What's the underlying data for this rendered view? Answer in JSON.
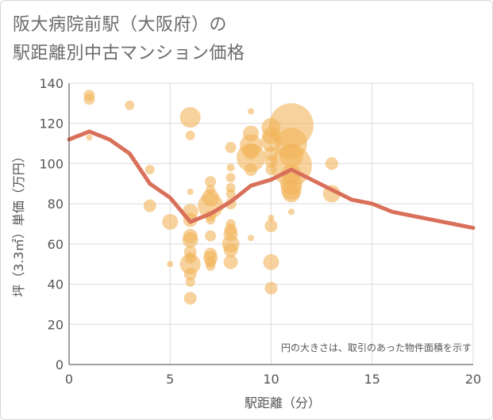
{
  "title_line1": "阪大病院前駅（大阪府）の",
  "title_line2": "駅距離別中古マンション価格",
  "note": "円の大きさは、取引のあった物件面積を示す",
  "colors": {
    "bubble": "#f2b45a",
    "line": "#d9705a",
    "grid": "#dcdcdc"
  },
  "chart_data": {
    "type": "scatter",
    "xlabel": "駅距離（分）",
    "ylabel": "坪（3.3㎡）単価（万円）",
    "xlim": [
      0,
      20
    ],
    "ylim": [
      0,
      140
    ],
    "x_ticks": [
      "0",
      "5",
      "10",
      "15",
      "20"
    ],
    "y_ticks": [
      "0",
      "20",
      "40",
      "60",
      "80",
      "100",
      "120",
      "140"
    ],
    "bubbles": [
      {
        "x": 1,
        "y": 134,
        "s": 7
      },
      {
        "x": 1,
        "y": 132,
        "s": 7
      },
      {
        "x": 1,
        "y": 113,
        "s": 4
      },
      {
        "x": 3,
        "y": 129,
        "s": 6
      },
      {
        "x": 4,
        "y": 97,
        "s": 6
      },
      {
        "x": 4,
        "y": 79,
        "s": 8
      },
      {
        "x": 5,
        "y": 71,
        "s": 10
      },
      {
        "x": 5,
        "y": 50,
        "s": 4
      },
      {
        "x": 6,
        "y": 123,
        "s": 13
      },
      {
        "x": 6,
        "y": 114,
        "s": 6
      },
      {
        "x": 6,
        "y": 86,
        "s": 4
      },
      {
        "x": 6,
        "y": 76,
        "s": 10
      },
      {
        "x": 6,
        "y": 72,
        "s": 9
      },
      {
        "x": 6,
        "y": 64,
        "s": 9
      },
      {
        "x": 6,
        "y": 62,
        "s": 10
      },
      {
        "x": 6,
        "y": 56,
        "s": 8
      },
      {
        "x": 6,
        "y": 53,
        "s": 7
      },
      {
        "x": 6,
        "y": 50,
        "s": 13
      },
      {
        "x": 6,
        "y": 45,
        "s": 8
      },
      {
        "x": 6,
        "y": 41,
        "s": 6
      },
      {
        "x": 6,
        "y": 33,
        "s": 8
      },
      {
        "x": 7,
        "y": 91,
        "s": 7
      },
      {
        "x": 7,
        "y": 87,
        "s": 6
      },
      {
        "x": 7,
        "y": 83,
        "s": 11
      },
      {
        "x": 7,
        "y": 79,
        "s": 16
      },
      {
        "x": 7,
        "y": 74,
        "s": 7
      },
      {
        "x": 7,
        "y": 72,
        "s": 6
      },
      {
        "x": 7,
        "y": 64,
        "s": 7
      },
      {
        "x": 7,
        "y": 55,
        "s": 8
      },
      {
        "x": 7,
        "y": 53,
        "s": 9
      },
      {
        "x": 7,
        "y": 51,
        "s": 7
      },
      {
        "x": 7,
        "y": 49,
        "s": 6
      },
      {
        "x": 8,
        "y": 108,
        "s": 7
      },
      {
        "x": 8,
        "y": 98,
        "s": 5
      },
      {
        "x": 8,
        "y": 93,
        "s": 6
      },
      {
        "x": 8,
        "y": 88,
        "s": 6
      },
      {
        "x": 8,
        "y": 85,
        "s": 6
      },
      {
        "x": 8,
        "y": 80,
        "s": 7
      },
      {
        "x": 8,
        "y": 70,
        "s": 6
      },
      {
        "x": 8,
        "y": 67,
        "s": 8
      },
      {
        "x": 8,
        "y": 65,
        "s": 9
      },
      {
        "x": 8,
        "y": 60,
        "s": 11
      },
      {
        "x": 8,
        "y": 57,
        "s": 9
      },
      {
        "x": 8,
        "y": 51,
        "s": 9
      },
      {
        "x": 9,
        "y": 126,
        "s": 4
      },
      {
        "x": 9,
        "y": 115,
        "s": 10
      },
      {
        "x": 9,
        "y": 109,
        "s": 14
      },
      {
        "x": 9,
        "y": 106,
        "s": 10
      },
      {
        "x": 9,
        "y": 103,
        "s": 18
      },
      {
        "x": 9,
        "y": 97,
        "s": 8
      },
      {
        "x": 9,
        "y": 63,
        "s": 4
      },
      {
        "x": 10,
        "y": 118,
        "s": 12
      },
      {
        "x": 10,
        "y": 114,
        "s": 11
      },
      {
        "x": 10,
        "y": 111,
        "s": 13
      },
      {
        "x": 10,
        "y": 105,
        "s": 9
      },
      {
        "x": 10,
        "y": 101,
        "s": 8
      },
      {
        "x": 10,
        "y": 97,
        "s": 7
      },
      {
        "x": 10,
        "y": 73,
        "s": 4
      },
      {
        "x": 10,
        "y": 69,
        "s": 8
      },
      {
        "x": 10,
        "y": 51,
        "s": 10
      },
      {
        "x": 10,
        "y": 38,
        "s": 8
      },
      {
        "x": 11,
        "y": 119,
        "s": 28
      },
      {
        "x": 11,
        "y": 110,
        "s": 20
      },
      {
        "x": 11,
        "y": 104,
        "s": 15
      },
      {
        "x": 11,
        "y": 99,
        "s": 26
      },
      {
        "x": 11,
        "y": 95,
        "s": 12
      },
      {
        "x": 11,
        "y": 90,
        "s": 14
      },
      {
        "x": 11,
        "y": 87,
        "s": 13
      },
      {
        "x": 11,
        "y": 85,
        "s": 11
      },
      {
        "x": 11,
        "y": 76,
        "s": 4
      },
      {
        "x": 13,
        "y": 100,
        "s": 8
      },
      {
        "x": 13,
        "y": 85,
        "s": 11
      }
    ],
    "series": [
      {
        "x": [
          0,
          1,
          2,
          3,
          4,
          5,
          6,
          7,
          8,
          9,
          10,
          11,
          12,
          13,
          14,
          15,
          16,
          17,
          18,
          19,
          20
        ],
        "values": [
          112,
          116,
          112,
          105,
          90,
          83,
          71,
          75,
          81,
          89,
          92,
          97,
          92,
          87,
          82,
          80,
          76,
          74,
          72,
          70,
          68
        ]
      }
    ]
  }
}
